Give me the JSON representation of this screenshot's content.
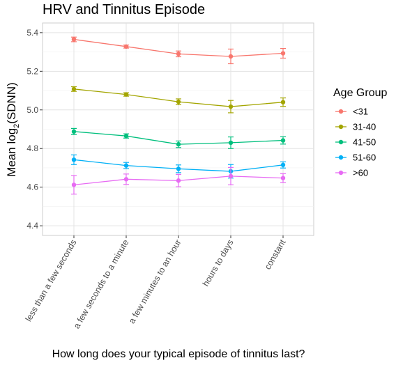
{
  "chart_data": {
    "type": "line",
    "title": "HRV and Tinnitus Episode",
    "xlabel": "How long does your typical episode of tinnitus last?",
    "ylabel_main": "Mean log",
    "ylabel_sub": "2",
    "ylabel_paren": "(SDNN)",
    "categories": [
      "less than a few seconds",
      "a few seconds to a minute",
      "a few minutes to an hour",
      "hours to days",
      "constant"
    ],
    "ylim": [
      4.35,
      5.45
    ],
    "yticks": [
      "4.4",
      "4.6",
      "4.8",
      "5.0",
      "5.2",
      "5.4"
    ],
    "grid": true,
    "legend": {
      "title": "Age Group",
      "position": "right"
    },
    "series": [
      {
        "name": "<31",
        "color": "#F8766D",
        "values": [
          5.365,
          5.328,
          5.29,
          5.277,
          5.293
        ],
        "err": [
          0.012,
          0.008,
          0.015,
          0.038,
          0.025
        ]
      },
      {
        "name": "31-40",
        "color": "#A3A500",
        "values": [
          5.108,
          5.08,
          5.042,
          5.017,
          5.04
        ],
        "err": [
          0.012,
          0.009,
          0.015,
          0.032,
          0.022
        ]
      },
      {
        "name": "41-50",
        "color": "#00BF7D",
        "values": [
          4.888,
          4.865,
          4.822,
          4.83,
          4.842
        ],
        "err": [
          0.016,
          0.011,
          0.017,
          0.03,
          0.019
        ]
      },
      {
        "name": "51-60",
        "color": "#00B0F6",
        "values": [
          4.742,
          4.712,
          4.695,
          4.682,
          4.715
        ],
        "err": [
          0.025,
          0.016,
          0.02,
          0.035,
          0.016
        ]
      },
      {
        "name": ">60",
        "color": "#E76BF3",
        "values": [
          4.612,
          4.641,
          4.634,
          4.657,
          4.647
        ],
        "err": [
          0.048,
          0.027,
          0.032,
          0.045,
          0.023
        ]
      }
    ]
  }
}
